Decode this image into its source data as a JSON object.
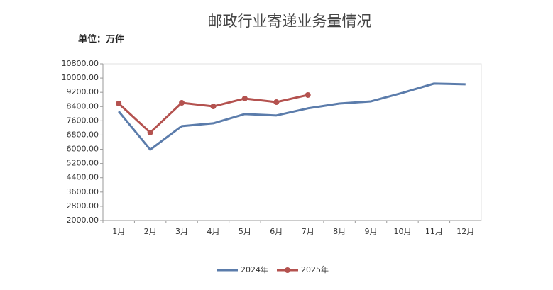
{
  "chart_data": {
    "type": "line",
    "title": "邮政行业寄递业务量情况",
    "subtitle": "单位：万件",
    "categories": [
      "1月",
      "2月",
      "3月",
      "4月",
      "5月",
      "6月",
      "7月",
      "8月",
      "9月",
      "10月",
      "11月",
      "12月"
    ],
    "series": [
      {
        "name": "2024年",
        "color": "#5b7cab",
        "marker": "none",
        "values": [
          8130,
          5980,
          7300,
          7460,
          7980,
          7900,
          8300,
          8570,
          8690,
          9170,
          9690,
          9650
        ]
      },
      {
        "name": "2025年",
        "color": "#b4524f",
        "marker": "circle",
        "values": [
          8570,
          6940,
          8610,
          8410,
          8850,
          8650,
          9050,
          null,
          null,
          null,
          null,
          null
        ]
      }
    ],
    "ylim": [
      2000,
      10800
    ],
    "yticks": [
      {
        "value": 2000,
        "label": "2000.00"
      },
      {
        "value": 2800,
        "label": "2800.00"
      },
      {
        "value": 3600,
        "label": "3600.00"
      },
      {
        "value": 4400,
        "label": "4400.00"
      },
      {
        "value": 5200,
        "label": "5200.00"
      },
      {
        "value": 6000,
        "label": "6000.00"
      },
      {
        "value": 6800,
        "label": "6800.00"
      },
      {
        "value": 7600,
        "label": "7600.00"
      },
      {
        "value": 8400,
        "label": "8400.00"
      },
      {
        "value": 9200,
        "label": "9200.00"
      },
      {
        "value": 10000,
        "label": "10000.00"
      },
      {
        "value": 10800,
        "label": "10800.00"
      }
    ],
    "grid": false,
    "legend": "bottom"
  }
}
